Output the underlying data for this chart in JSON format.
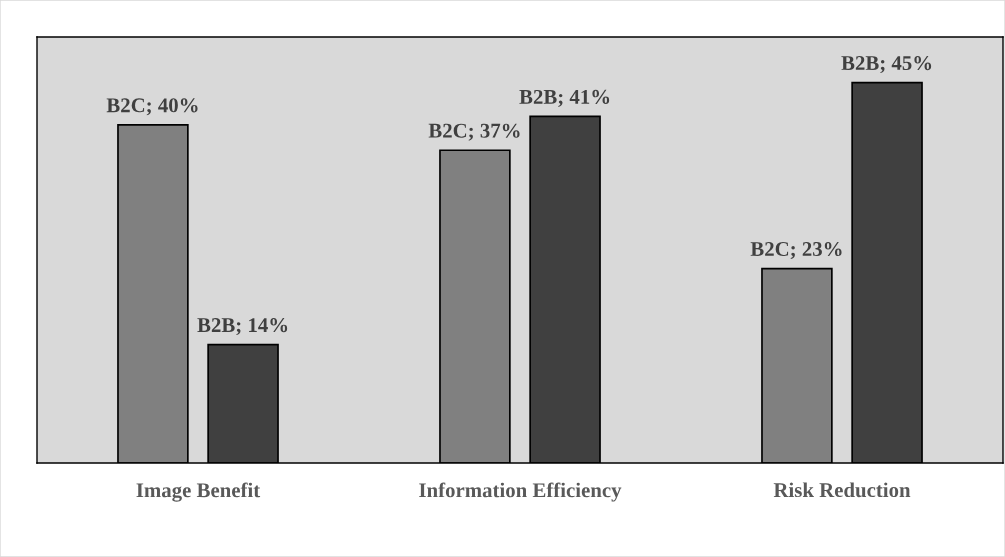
{
  "chart_data": {
    "type": "bar",
    "categories": [
      "Image Benefit",
      "Information Efficiency",
      "Risk Reduction"
    ],
    "series": [
      {
        "color": "#808080",
        "values": [
          40,
          37,
          23
        ],
        "value_labels": [
          "B2C; 40%",
          "B2C; 37%",
          "B2C; 23%"
        ]
      },
      {
        "color": "#404040",
        "values": [
          14,
          41,
          45
        ],
        "value_labels": [
          "B2B; 14%",
          "B2B; 41%",
          "B2B; 45%"
        ]
      }
    ],
    "grid": false,
    "legend": false
  }
}
